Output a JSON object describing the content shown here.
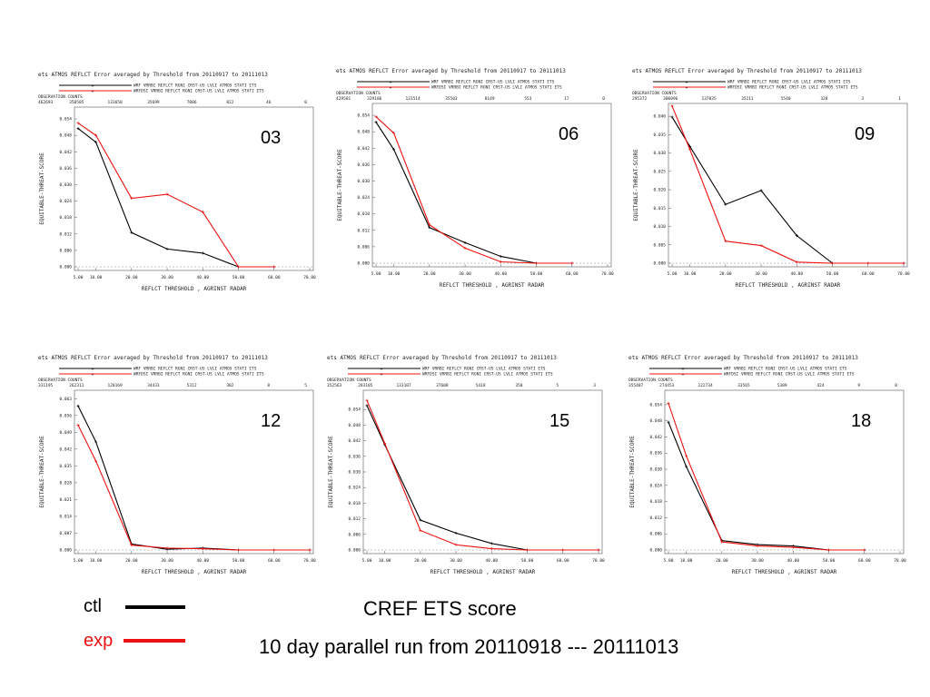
{
  "legend": {
    "ctl_label": "ctl",
    "exp_label": "exp",
    "ctl_color": "#000000",
    "exp_color": "#ee1111"
  },
  "footer": {
    "title": "CREF ETS score",
    "subtitle": "10 day parallel run from 20110918 --- 20111013"
  },
  "panel_text": {
    "title": "ets ATMOS REFLCT Error averaged by Threshold from 20110917 to 20111013",
    "legend1": "WRF   VRRBI REFLCT   RGNI CRST-US LVLI ATMOS STATI ETS",
    "legend2": "WRFDSI VRRBI REFLCT  RGNI CRST-US LVLI ATMOS STATI ETS",
    "obs_header": "OBSERVATION COUNTS",
    "ylabel": "EQUITABLE-THREAT-SCORE",
    "xlabel": "REFLCT THRESHOLD , AGRINST RADAR"
  },
  "chart_data": [
    {
      "type": "line",
      "label": "03",
      "x": [
        5,
        10,
        20,
        30,
        40,
        50,
        60,
        70
      ],
      "xlim": [
        5,
        70
      ],
      "ylim": [
        0,
        0.057
      ],
      "yticks": [
        0.0,
        0.006,
        0.012,
        0.018,
        0.024,
        0.03,
        0.036,
        0.042,
        0.048,
        0.054
      ],
      "ytick_labels": [
        "0.000",
        "0.006",
        "0.012",
        "0.018",
        "0.024",
        "0.030",
        "0.036",
        "0.042",
        "0.048",
        "0.054"
      ],
      "xtick_labels": [
        "5.00",
        "10.00",
        "20.00",
        "30.00",
        "40.00",
        "50.00",
        "60.00",
        "70.00"
      ],
      "obs_counts": [
        "462693",
        "350585",
        "133650",
        "35699",
        "7086",
        "822",
        "46",
        "0"
      ],
      "series": [
        {
          "name": "ctl",
          "values": [
            0.0505,
            0.0455,
            0.0125,
            0.0065,
            0.005,
            0,
            0,
            null
          ]
        },
        {
          "name": "exp",
          "values": [
            0.0525,
            0.048,
            0.025,
            0.0265,
            0.02,
            0,
            0,
            null
          ]
        }
      ]
    },
    {
      "type": "line",
      "label": "06",
      "x": [
        5,
        10,
        20,
        30,
        40,
        50,
        60,
        70
      ],
      "xlim": [
        5,
        70
      ],
      "ylim": [
        0,
        0.057
      ],
      "yticks": [
        0.0,
        0.006,
        0.012,
        0.018,
        0.024,
        0.03,
        0.036,
        0.042,
        0.048,
        0.054
      ],
      "ytick_labels": [
        "0.000",
        "0.006",
        "0.012",
        "0.018",
        "0.024",
        "0.030",
        "0.036",
        "0.042",
        "0.048",
        "0.054"
      ],
      "xtick_labels": [
        "5.00",
        "10.00",
        "20.00",
        "30.00",
        "40.00",
        "50.00",
        "60.00",
        "70.00"
      ],
      "obs_counts": [
        "429581",
        "329186",
        "131514",
        "35503",
        "8149",
        "553",
        "17",
        "0"
      ],
      "series": [
        {
          "name": "ctl",
          "values": [
            0.0515,
            0.0415,
            0.013,
            0.0075,
            0.0025,
            0,
            0,
            null
          ]
        },
        {
          "name": "exp",
          "values": [
            0.0535,
            0.0475,
            0.014,
            0.0055,
            0.0005,
            0,
            0,
            null
          ]
        }
      ]
    },
    {
      "type": "line",
      "label": "09",
      "x": [
        5,
        10,
        20,
        30,
        40,
        50,
        60,
        70
      ],
      "xlim": [
        5,
        70
      ],
      "ylim": [
        0,
        0.0425
      ],
      "yticks": [
        0.0,
        0.005,
        0.01,
        0.015,
        0.02,
        0.025,
        0.03,
        0.035,
        0.04
      ],
      "ytick_labels": [
        "0.000",
        "0.005",
        "0.010",
        "0.015",
        "0.020",
        "0.025",
        "0.030",
        "0.035",
        "0.040"
      ],
      "xtick_labels": [
        "5.00",
        "10.00",
        "20.00",
        "30.00",
        "40.00",
        "50.00",
        "60.00",
        "70.00"
      ],
      "obs_counts": [
        "295372",
        "306096",
        "137035",
        "35211",
        "5540",
        "328",
        "3",
        "1"
      ],
      "series": [
        {
          "name": "ctl",
          "values": [
            0.0398,
            0.0318,
            0.016,
            0.0198,
            0.0075,
            0,
            0,
            0
          ]
        },
        {
          "name": "exp",
          "values": [
            0.0428,
            0.031,
            0.006,
            0.0048,
            0.0003,
            0,
            0,
            0
          ]
        }
      ]
    },
    {
      "type": "line",
      "label": "12",
      "x": [
        5,
        10,
        20,
        30,
        40,
        50,
        60,
        70
      ],
      "xlim": [
        5,
        70
      ],
      "ylim": [
        0,
        0.065
      ],
      "yticks": [
        0.0,
        0.007,
        0.014,
        0.021,
        0.028,
        0.035,
        0.042,
        0.049,
        0.056,
        0.063
      ],
      "ytick_labels": [
        "0.000",
        "0.007",
        "0.014",
        "0.021",
        "0.028",
        "0.035",
        "0.042",
        "0.049",
        "0.056",
        "0.063"
      ],
      "xtick_labels": [
        "5.00",
        "10.00",
        "20.00",
        "30.00",
        "40.00",
        "50.00",
        "60.00",
        "70.00"
      ],
      "obs_counts": [
        "331195",
        "262311",
        "120169",
        "34433",
        "5312",
        "302",
        "8",
        "5"
      ],
      "series": [
        {
          "name": "ctl",
          "values": [
            0.06,
            0.045,
            0.0025,
            0.0003,
            0.0008,
            0,
            0,
            0
          ]
        },
        {
          "name": "exp",
          "values": [
            0.052,
            0.037,
            0.002,
            0.0008,
            0.0005,
            0,
            0,
            0
          ]
        }
      ]
    },
    {
      "type": "line",
      "label": "15",
      "x": [
        5,
        10,
        20,
        30,
        40,
        50,
        60,
        70
      ],
      "xlim": [
        5,
        70
      ],
      "ylim": [
        0,
        0.06
      ],
      "yticks": [
        0.0,
        0.006,
        0.012,
        0.018,
        0.024,
        0.03,
        0.036,
        0.042,
        0.048,
        0.054
      ],
      "ytick_labels": [
        "0.000",
        "0.006",
        "0.012",
        "0.018",
        "0.024",
        "0.030",
        "0.036",
        "0.042",
        "0.048",
        "0.054"
      ],
      "xtick_labels": [
        "5.00",
        "10.00",
        "20.00",
        "30.00",
        "40.00",
        "50.00",
        "60.00",
        "70.00"
      ],
      "obs_counts": [
        "352563",
        "283105",
        "133107",
        "37608",
        "5418",
        "350",
        "5",
        "3"
      ],
      "series": [
        {
          "name": "ctl",
          "values": [
            0.0555,
            0.0405,
            0.0115,
            0.0065,
            0.0025,
            0,
            0,
            0
          ]
        },
        {
          "name": "exp",
          "values": [
            0.0575,
            0.041,
            0.0075,
            0.002,
            0.0005,
            0,
            0,
            0
          ]
        }
      ]
    },
    {
      "type": "line",
      "label": "18",
      "x": [
        5,
        10,
        20,
        30,
        40,
        50,
        60,
        70
      ],
      "xlim": [
        5,
        70
      ],
      "ylim": [
        0,
        0.058
      ],
      "yticks": [
        0.0,
        0.006,
        0.012,
        0.018,
        0.024,
        0.03,
        0.036,
        0.042,
        0.048,
        0.054
      ],
      "ytick_labels": [
        "0.000",
        "0.006",
        "0.012",
        "0.018",
        "0.024",
        "0.030",
        "0.036",
        "0.042",
        "0.048",
        "0.054"
      ],
      "xtick_labels": [
        "5.00",
        "10.00",
        "20.00",
        "30.00",
        "40.00",
        "50.00",
        "60.00",
        "70.00"
      ],
      "obs_counts": [
        "355487",
        "274453",
        "122734",
        "33565",
        "5309",
        "424",
        "9",
        "0"
      ],
      "series": [
        {
          "name": "ctl",
          "values": [
            0.0475,
            0.031,
            0.0035,
            0.002,
            0.0015,
            0,
            0,
            null
          ]
        },
        {
          "name": "exp",
          "values": [
            0.0545,
            0.035,
            0.003,
            0.0015,
            0.001,
            0,
            0,
            null
          ]
        }
      ]
    }
  ]
}
